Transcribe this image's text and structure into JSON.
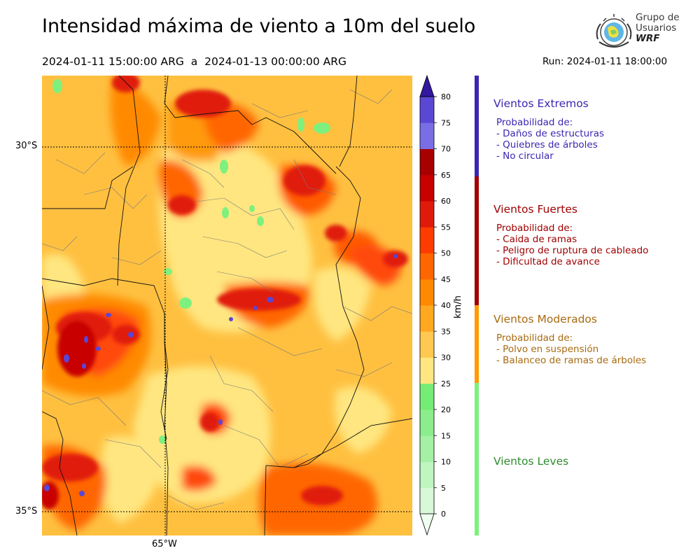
{
  "header": {
    "title": "Intensidad máxima de viento a 10m del suelo",
    "period": "2024-01-11 15:00:00 ARG  a  2024-01-13 00:00:00 ARG",
    "run": "Run: 2024-01-11 18:00:00"
  },
  "logo": {
    "line1": "Grupo de",
    "line2": "Usuarios",
    "line3": "WRF"
  },
  "map": {
    "lat_labels": [
      "30°S",
      "35°S"
    ],
    "lon_labels": [
      "65°W"
    ],
    "colors": {
      "light_green": "#7ef07e",
      "yellow": "#ffe680",
      "light_orange": "#ffc040",
      "orange": "#ffa41c",
      "dark_orange": "#ff7a10",
      "red_orange": "#ff4a0a",
      "red": "#e01a0a",
      "dark_red": "#b00000",
      "purple": "#5a46d6"
    }
  },
  "colorbar": {
    "unit": "km/h",
    "ticks": [
      "0",
      "5",
      "10",
      "15",
      "20",
      "25",
      "30",
      "35",
      "40",
      "45",
      "50",
      "55",
      "60",
      "65",
      "70",
      "75",
      "80"
    ],
    "colors": [
      "#f0fff0",
      "#d8f8d8",
      "#bff5bf",
      "#a4f0a4",
      "#8ced8c",
      "#75ec75",
      "#ffe680",
      "#ffc850",
      "#ffa820",
      "#ff8a00",
      "#ff6600",
      "#ff3c00",
      "#e01a0a",
      "#c80000",
      "#a80000",
      "#7a6ee6",
      "#5a48d4",
      "#3c2eb8",
      "#3318a0"
    ]
  },
  "categories": [
    {
      "name": "Vientos Extremos",
      "color": "#3a27b0",
      "intro": "Probabilidad de:",
      "items": [
        "- Daños de estructuras",
        "- Quiebres de árboles",
        "- No circular"
      ]
    },
    {
      "name": "Vientos Fuertes",
      "color": "#a00000",
      "intro": "Probabilidad de:",
      "items": [
        "- Caida de ramas",
        "- Peligro de ruptura de cableado",
        "- Dificultad de avance"
      ]
    },
    {
      "name": "Vientos Moderados",
      "color": "#a86a10",
      "intro": "Probabilidad de:",
      "items": [
        "- Polvo en suspensión",
        "- Balanceo de ramas de árboles"
      ]
    },
    {
      "name": "Vientos Leves",
      "color": "#2e8b2e",
      "intro": "",
      "items": []
    }
  ]
}
